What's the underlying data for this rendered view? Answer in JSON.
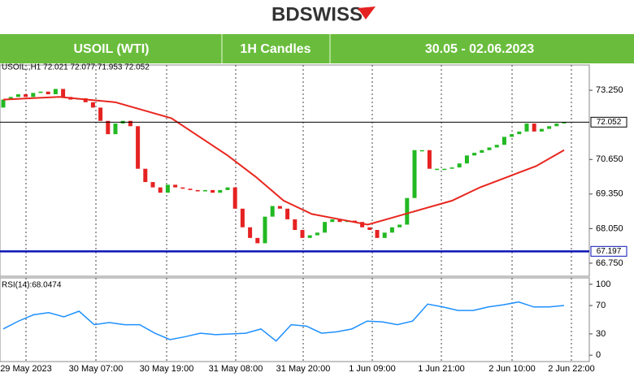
{
  "header": {
    "brand": "BDSWISS",
    "symbol": "USOIL (WTI)",
    "timeframe": "1H Candles",
    "period": "30.05 - 02.06.2023"
  },
  "chart_data": [
    {
      "type": "candlestick",
      "title": "USOIL.,H1  72.021 72.077 71.953 72.052",
      "values": [
        72.6,
        72.9,
        73.0,
        73.1,
        73.0,
        73.15,
        73.2,
        73.1,
        73.3,
        73.0,
        72.9,
        72.95,
        72.8,
        72.6,
        72.1,
        71.6,
        72.0,
        72.1,
        71.9,
        70.3,
        69.8,
        69.6,
        69.4,
        69.7,
        69.6,
        69.55,
        69.5,
        69.45,
        69.5,
        69.4,
        69.5,
        69.6,
        68.8,
        68.1,
        67.7,
        67.5,
        68.5,
        68.9,
        68.8,
        68.4,
        68.0,
        67.7,
        67.8,
        67.9,
        68.3,
        68.4,
        68.3,
        68.35,
        68.3,
        68.1,
        68.0,
        67.7,
        67.9,
        68.1,
        68.2,
        69.2,
        71.0,
        71.0,
        70.3,
        70.3,
        70.3,
        70.35,
        70.5,
        70.8,
        70.9,
        71.0,
        71.1,
        71.2,
        71.5,
        71.6,
        71.7,
        72.0,
        71.7,
        71.8,
        71.9,
        72.0,
        72.052
      ],
      "up_color": "#22b922",
      "down_color": "#e52222",
      "moving_average": {
        "color": "#e8261e",
        "values": [
          72.9,
          72.95,
          73.0,
          72.9,
          72.8,
          72.5,
          72.2,
          71.5,
          70.8,
          70.0,
          69.1,
          68.6,
          68.4,
          68.2,
          68.5,
          68.8,
          69.1,
          69.6,
          70.0,
          70.4,
          71.0
        ]
      },
      "price_lines": [
        {
          "value": 72.052,
          "color": "#000000"
        },
        {
          "value": 67.197,
          "color": "#0a14b4"
        }
      ],
      "ylim": [
        66.26,
        74.2
      ],
      "yticks": [
        {
          "value": 73.25,
          "label": "73.250"
        },
        {
          "value": 70.65,
          "label": "70.650"
        },
        {
          "value": 69.35,
          "label": "69.350"
        },
        {
          "value": 68.05,
          "label": "68.050"
        },
        {
          "value": 66.75,
          "label": "66.750"
        }
      ],
      "x_labels": [
        "29 May 2023",
        "30 May 07:00",
        "30 May 19:00",
        "31 May 08:00",
        "31 May 20:00",
        "1 Jun 09:00",
        "1 Jun 21:00",
        "2 Jun 10:00",
        "2 Jun 22:00"
      ]
    },
    {
      "type": "line",
      "title": "RSI(14):68.0474",
      "color": "#1e90ff",
      "values": [
        37,
        48,
        57,
        60,
        54,
        62,
        43,
        46,
        43,
        43,
        31,
        22,
        26,
        31,
        29,
        30,
        31,
        37,
        20,
        43,
        41,
        31,
        33,
        37,
        48,
        47,
        43,
        48,
        72,
        68,
        63,
        63,
        68,
        71,
        75,
        68,
        68,
        70
      ],
      "ylim": [
        -9,
        109
      ],
      "yticks": [
        0,
        30,
        70,
        100
      ]
    }
  ]
}
